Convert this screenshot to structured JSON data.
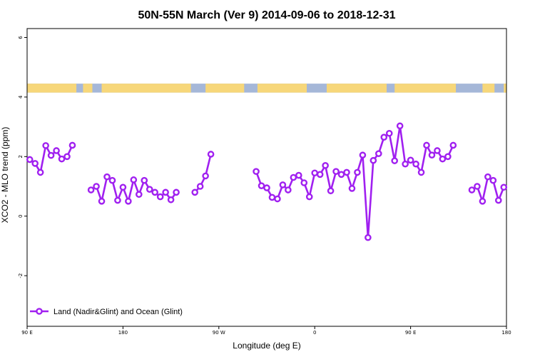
{
  "chart_data": {
    "type": "line",
    "title": "50N-55N March (Ver 9)   2014-09-06 to 2018-12-31",
    "xlabel": "Longitude (deg E)",
    "ylabel": "XCO2 - MLO trend (ppm)",
    "xlim": [
      90,
      450
    ],
    "ylim": [
      -3.7,
      6.3
    ],
    "x_ticks": [
      {
        "value": 90,
        "label": "90 E"
      },
      {
        "value": 162,
        "label": "180"
      },
      {
        "value": 234,
        "label": "90 W"
      },
      {
        "value": 306,
        "label": "0"
      },
      {
        "value": 378,
        "label": "90 E"
      },
      {
        "value": 450,
        "label": "180"
      }
    ],
    "y_ticks": [
      {
        "value": -2,
        "label": "-2"
      },
      {
        "value": 0,
        "label": "0"
      },
      {
        "value": 2,
        "label": "2"
      },
      {
        "value": 4,
        "label": "4"
      },
      {
        "value": 6,
        "label": "6"
      }
    ],
    "legend": {
      "position": "bottom-left"
    },
    "colors": {
      "series": "#a020f0",
      "land": "#f7d77a",
      "ocean": "#a5b7d8"
    },
    "series": [
      {
        "name": "Land (Nadir&Glint) and Ocean (Glint)",
        "segments": [
          [
            [
              92,
              1.9
            ],
            [
              96,
              1.77
            ],
            [
              100,
              1.47
            ],
            [
              104,
              2.37
            ],
            [
              108,
              2.04
            ],
            [
              112,
              2.2
            ],
            [
              116,
              1.92
            ],
            [
              120,
              2.0
            ],
            [
              124,
              2.38
            ]
          ],
          [
            [
              138,
              0.88
            ],
            [
              142,
              1.0
            ],
            [
              146,
              0.5
            ],
            [
              150,
              1.32
            ],
            [
              154,
              1.2
            ],
            [
              158,
              0.53
            ],
            [
              162,
              0.97
            ],
            [
              166,
              0.5
            ],
            [
              170,
              1.22
            ],
            [
              174,
              0.73
            ],
            [
              178,
              1.2
            ],
            [
              182,
              0.9
            ],
            [
              186,
              0.8
            ],
            [
              190,
              0.65
            ],
            [
              194,
              0.8
            ],
            [
              198,
              0.55
            ],
            [
              202,
              0.8
            ]
          ],
          [
            [
              216,
              0.8
            ],
            [
              220,
              1.0
            ],
            [
              224,
              1.35
            ],
            [
              228,
              2.08
            ]
          ],
          [
            [
              262,
              1.5
            ],
            [
              266,
              1.02
            ],
            [
              270,
              0.95
            ],
            [
              274,
              0.63
            ],
            [
              278,
              0.58
            ],
            [
              282,
              1.05
            ],
            [
              286,
              0.88
            ],
            [
              290,
              1.3
            ],
            [
              294,
              1.37
            ],
            [
              298,
              1.12
            ],
            [
              302,
              0.65
            ],
            [
              306,
              1.45
            ],
            [
              310,
              1.4
            ],
            [
              314,
              1.7
            ],
            [
              318,
              0.85
            ],
            [
              322,
              1.5
            ],
            [
              326,
              1.4
            ],
            [
              330,
              1.47
            ],
            [
              334,
              0.93
            ],
            [
              338,
              1.47
            ],
            [
              342,
              2.05
            ],
            [
              346,
              -0.72
            ],
            [
              350,
              1.87
            ],
            [
              354,
              2.1
            ],
            [
              358,
              2.65
            ],
            [
              362,
              2.78
            ],
            [
              366,
              1.86
            ],
            [
              370,
              3.03
            ],
            [
              374,
              1.75
            ],
            [
              378,
              1.88
            ],
            [
              382,
              1.75
            ],
            [
              386,
              1.47
            ],
            [
              390,
              2.38
            ],
            [
              394,
              2.05
            ],
            [
              398,
              2.2
            ],
            [
              402,
              1.92
            ],
            [
              406,
              2.0
            ],
            [
              410,
              2.38
            ]
          ],
          [
            [
              424,
              0.88
            ],
            [
              428,
              1.0
            ],
            [
              432,
              0.5
            ],
            [
              436,
              1.32
            ],
            [
              440,
              1.2
            ],
            [
              444,
              0.53
            ],
            [
              448,
              0.97
            ]
          ]
        ]
      }
    ],
    "continent_strip": {
      "y_range": [
        4.15,
        4.45
      ],
      "land_segments": [
        [
          90,
          127
        ],
        [
          132,
          139
        ],
        [
          146,
          213
        ],
        [
          224,
          253
        ],
        [
          263,
          300
        ],
        [
          315,
          360
        ],
        [
          366,
          412
        ],
        [
          432,
          441
        ],
        [
          448,
          450
        ]
      ]
    }
  }
}
